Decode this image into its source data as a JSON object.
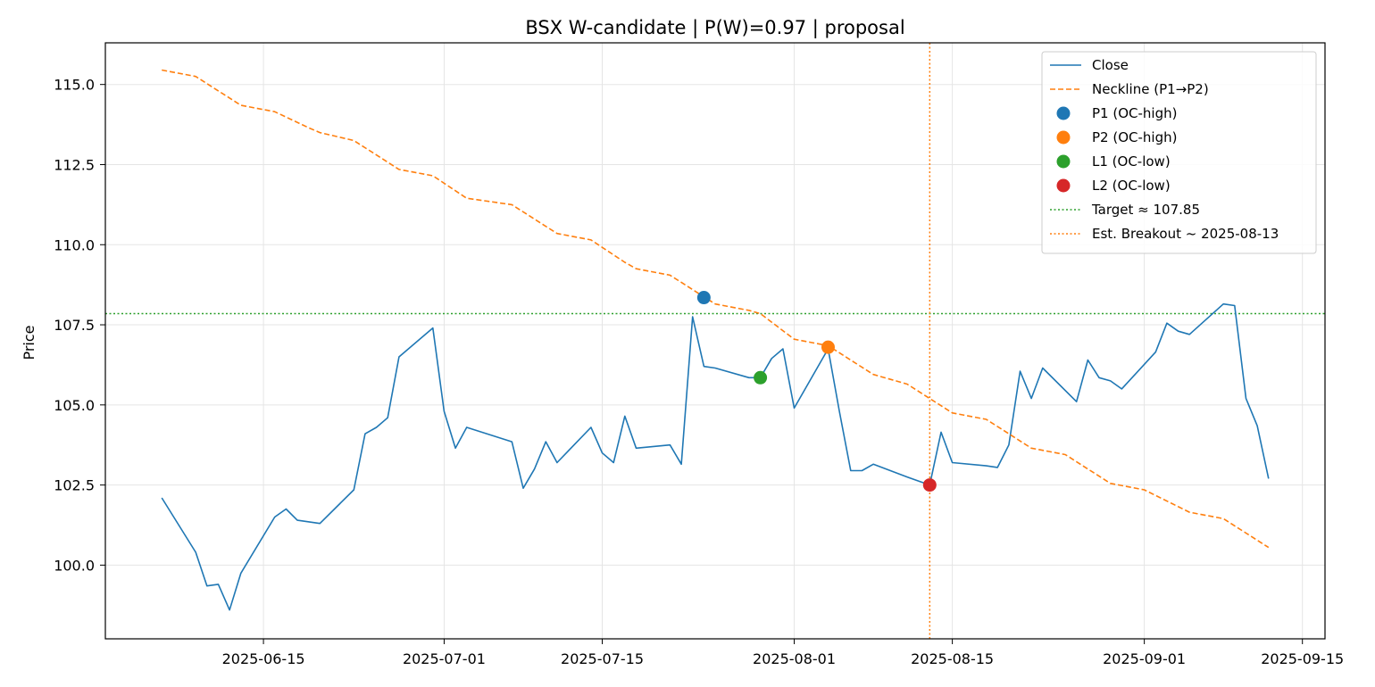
{
  "chart_data": {
    "type": "line",
    "title": "BSX W-candidate | P(W)=0.97 | proposal",
    "ylabel": "Price",
    "xlabel": "",
    "xlim": [
      "2025-06-01",
      "2025-09-17"
    ],
    "ylim": [
      97.7,
      116.3
    ],
    "xticks": [
      {
        "date": "2025-06-15",
        "label": "2025-06-15"
      },
      {
        "date": "2025-07-01",
        "label": "2025-07-01"
      },
      {
        "date": "2025-07-15",
        "label": "2025-07-15"
      },
      {
        "date": "2025-08-01",
        "label": "2025-08-01"
      },
      {
        "date": "2025-08-15",
        "label": "2025-08-15"
      },
      {
        "date": "2025-09-01",
        "label": "2025-09-01"
      },
      {
        "date": "2025-09-15",
        "label": "2025-09-15"
      }
    ],
    "yticks": [
      {
        "value": 100.0,
        "label": "100.0"
      },
      {
        "value": 102.5,
        "label": "102.5"
      },
      {
        "value": 105.0,
        "label": "105.0"
      },
      {
        "value": 107.5,
        "label": "107.5"
      },
      {
        "value": 110.0,
        "label": "110.0"
      },
      {
        "value": 112.5,
        "label": "112.5"
      },
      {
        "value": 115.0,
        "label": "115.0"
      }
    ],
    "grid": true,
    "legend_position": "top-right",
    "series": [
      {
        "name": "Close",
        "style": "solid",
        "color": "#1f77b4",
        "points": [
          [
            "2025-06-06",
            102.1
          ],
          [
            "2025-06-09",
            100.4
          ],
          [
            "2025-06-10",
            99.35
          ],
          [
            "2025-06-11",
            99.4
          ],
          [
            "2025-06-12",
            98.6
          ],
          [
            "2025-06-13",
            99.75
          ],
          [
            "2025-06-16",
            101.5
          ],
          [
            "2025-06-17",
            101.75
          ],
          [
            "2025-06-18",
            101.4
          ],
          [
            "2025-06-20",
            101.3
          ],
          [
            "2025-06-23",
            102.35
          ],
          [
            "2025-06-24",
            104.1
          ],
          [
            "2025-06-25",
            104.3
          ],
          [
            "2025-06-26",
            104.6
          ],
          [
            "2025-06-27",
            106.5
          ],
          [
            "2025-06-30",
            107.4
          ],
          [
            "2025-07-01",
            104.8
          ],
          [
            "2025-07-02",
            103.65
          ],
          [
            "2025-07-03",
            104.3
          ],
          [
            "2025-07-07",
            103.85
          ],
          [
            "2025-07-08",
            102.4
          ],
          [
            "2025-07-09",
            103.0
          ],
          [
            "2025-07-10",
            103.85
          ],
          [
            "2025-07-11",
            103.2
          ],
          [
            "2025-07-14",
            104.3
          ],
          [
            "2025-07-15",
            103.5
          ],
          [
            "2025-07-16",
            103.2
          ],
          [
            "2025-07-17",
            104.65
          ],
          [
            "2025-07-18",
            103.65
          ],
          [
            "2025-07-21",
            103.75
          ],
          [
            "2025-07-22",
            103.15
          ],
          [
            "2025-07-23",
            107.75
          ],
          [
            "2025-07-24",
            106.2
          ],
          [
            "2025-07-25",
            106.15
          ],
          [
            "2025-07-28",
            105.85
          ],
          [
            "2025-07-29",
            105.85
          ],
          [
            "2025-07-30",
            106.45
          ],
          [
            "2025-07-31",
            106.75
          ],
          [
            "2025-08-01",
            104.9
          ],
          [
            "2025-08-04",
            106.75
          ],
          [
            "2025-08-05",
            104.8
          ],
          [
            "2025-08-06",
            102.95
          ],
          [
            "2025-08-07",
            102.95
          ],
          [
            "2025-08-08",
            103.15
          ],
          [
            "2025-08-11",
            102.75
          ],
          [
            "2025-08-13",
            102.5
          ],
          [
            "2025-08-14",
            104.15
          ],
          [
            "2025-08-15",
            103.2
          ],
          [
            "2025-08-18",
            103.1
          ],
          [
            "2025-08-19",
            103.05
          ],
          [
            "2025-08-20",
            103.75
          ],
          [
            "2025-08-21",
            106.05
          ],
          [
            "2025-08-22",
            105.2
          ],
          [
            "2025-08-23",
            106.15
          ],
          [
            "2025-08-26",
            105.1
          ],
          [
            "2025-08-27",
            106.4
          ],
          [
            "2025-08-28",
            105.85
          ],
          [
            "2025-08-29",
            105.75
          ],
          [
            "2025-08-30",
            105.5
          ],
          [
            "2025-09-02",
            106.65
          ],
          [
            "2025-09-03",
            107.55
          ],
          [
            "2025-09-04",
            107.3
          ],
          [
            "2025-09-05",
            107.2
          ],
          [
            "2025-09-08",
            108.15
          ],
          [
            "2025-09-09",
            108.1
          ],
          [
            "2025-09-10",
            105.2
          ],
          [
            "2025-09-11",
            104.35
          ],
          [
            "2025-09-12",
            102.7
          ]
        ]
      },
      {
        "name": "Neckline (P1→P2)",
        "style": "dashed",
        "color": "#ff7f0e",
        "points": [
          [
            "2025-06-06",
            115.45
          ],
          [
            "2025-06-09",
            115.25
          ],
          [
            "2025-06-13",
            114.35
          ],
          [
            "2025-06-16",
            114.15
          ],
          [
            "2025-06-19",
            113.65
          ],
          [
            "2025-06-20",
            113.5
          ],
          [
            "2025-06-23",
            113.25
          ],
          [
            "2025-06-27",
            112.35
          ],
          [
            "2025-06-30",
            112.15
          ],
          [
            "2025-07-03",
            111.45
          ],
          [
            "2025-07-07",
            111.25
          ],
          [
            "2025-07-11",
            110.35
          ],
          [
            "2025-07-14",
            110.15
          ],
          [
            "2025-07-17",
            109.45
          ],
          [
            "2025-07-18",
            109.25
          ],
          [
            "2025-07-21",
            109.05
          ],
          [
            "2025-07-25",
            108.15
          ],
          [
            "2025-07-28",
            107.95
          ],
          [
            "2025-07-29",
            107.85
          ],
          [
            "2025-08-01",
            107.05
          ],
          [
            "2025-08-04",
            106.85
          ],
          [
            "2025-08-08",
            105.95
          ],
          [
            "2025-08-11",
            105.65
          ],
          [
            "2025-08-15",
            104.75
          ],
          [
            "2025-08-18",
            104.55
          ],
          [
            "2025-08-22",
            103.65
          ],
          [
            "2025-08-25",
            103.45
          ],
          [
            "2025-08-29",
            102.55
          ],
          [
            "2025-09-01",
            102.35
          ],
          [
            "2025-09-05",
            101.65
          ],
          [
            "2025-09-08",
            101.45
          ],
          [
            "2025-09-12",
            100.55
          ]
        ]
      }
    ],
    "markers": [
      {
        "name": "P1 (OC-high)",
        "color": "#1f77b4",
        "date": "2025-07-24",
        "value": 108.35
      },
      {
        "name": "P2 (OC-high)",
        "color": "#ff7f0e",
        "date": "2025-08-04",
        "value": 106.8
      },
      {
        "name": "L1 (OC-low)",
        "color": "#2ca02c",
        "date": "2025-07-29",
        "value": 105.85
      },
      {
        "name": "L2 (OC-low)",
        "color": "#d62728",
        "date": "2025-08-13",
        "value": 102.5
      }
    ],
    "reference_lines": [
      {
        "name": "Target ≈ 107.85",
        "orientation": "horizontal",
        "value": 107.85,
        "style": "dotted",
        "color": "#2ca02c"
      },
      {
        "name": "Est. Breakout ~ 2025-08-13",
        "orientation": "vertical",
        "date": "2025-08-13",
        "style": "dotted",
        "color": "#ff7f0e"
      }
    ],
    "legend": [
      {
        "label": "Close",
        "kind": "line",
        "style": "solid",
        "color": "#1f77b4"
      },
      {
        "label": "Neckline (P1→P2)",
        "kind": "line",
        "style": "dashed",
        "color": "#ff7f0e"
      },
      {
        "label": "P1 (OC-high)",
        "kind": "marker",
        "color": "#1f77b4"
      },
      {
        "label": "P2 (OC-high)",
        "kind": "marker",
        "color": "#ff7f0e"
      },
      {
        "label": "L1 (OC-low)",
        "kind": "marker",
        "color": "#2ca02c"
      },
      {
        "label": "L2 (OC-low)",
        "kind": "marker",
        "color": "#d62728"
      },
      {
        "label": "Target ≈ 107.85",
        "kind": "line",
        "style": "dotted",
        "color": "#2ca02c"
      },
      {
        "label": "Est. Breakout ~ 2025-08-13",
        "kind": "line",
        "style": "dotted",
        "color": "#ff7f0e"
      }
    ]
  }
}
